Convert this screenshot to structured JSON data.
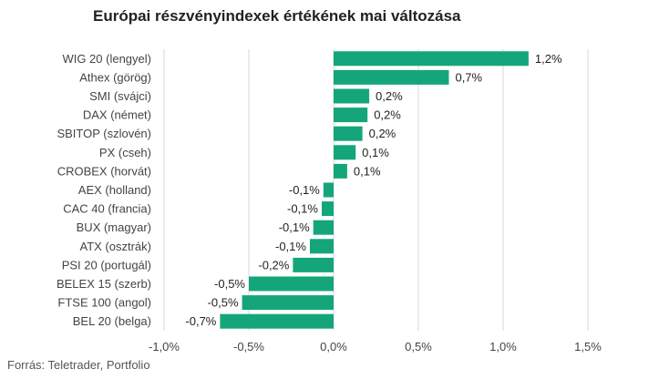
{
  "title": "Európai részvényindexek értékének mai változása",
  "source": "Forrás: Teletrader, Portfolio",
  "colors": {
    "bar": "#14a67a",
    "grid": "#d9d9d9"
  },
  "chart_data": {
    "type": "bar",
    "orientation": "horizontal",
    "title": "Európai részvényindexek értékének mai változása",
    "categories": [
      "WIG 20 (lengyel)",
      "Athex (görög)",
      "SMI (svájci)",
      "DAX (német)",
      "SBITOP (szlovén)",
      "PX (cseh)",
      "CROBEX (horvát)",
      "AEX (holland)",
      "CAC 40 (francia)",
      "BUX (magyar)",
      "ATX (osztrák)",
      "PSI 20 (portugál)",
      "BELEX 15 (szerb)",
      "FTSE 100 (angol)",
      "BEL 20 (belga)"
    ],
    "values": [
      1.15,
      0.68,
      0.21,
      0.2,
      0.17,
      0.13,
      0.08,
      -0.06,
      -0.07,
      -0.12,
      -0.14,
      -0.24,
      -0.5,
      -0.54,
      -0.67
    ],
    "value_labels": [
      "1,2%",
      "0,7%",
      "0,2%",
      "0,2%",
      "0,2%",
      "0,1%",
      "0,1%",
      "-0,1%",
      "-0,1%",
      "-0,1%",
      "-0,1%",
      "-0,2%",
      "-0,5%",
      "-0,5%",
      "-0,7%"
    ],
    "xlim": [
      -1.0,
      1.5
    ],
    "xticks": [
      -1.0,
      -0.5,
      0.0,
      0.5,
      1.0,
      1.5
    ],
    "xtick_labels": [
      "-1,0%",
      "-0,5%",
      "0,0%",
      "0,5%",
      "1,0%",
      "1,5%"
    ],
    "grid": true
  }
}
